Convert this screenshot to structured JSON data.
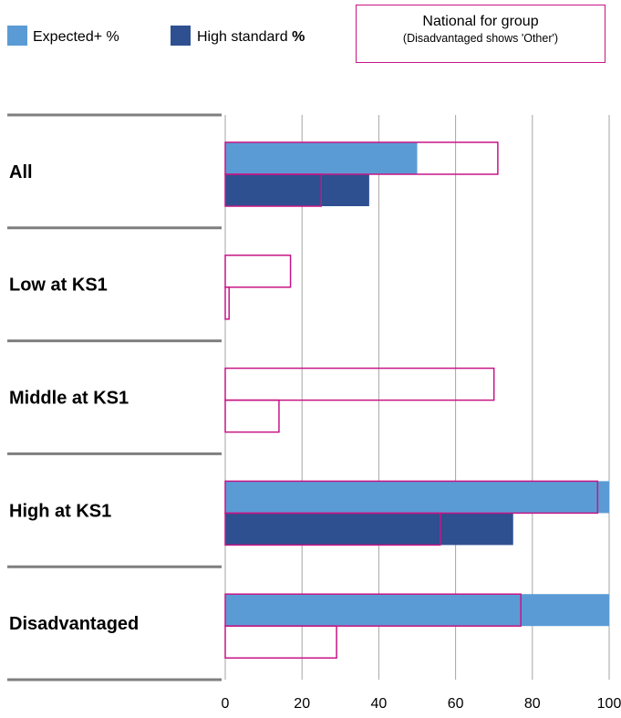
{
  "legend": {
    "expected_label": "Expected+ %",
    "high_label_main": "High standard ",
    "high_label_bold": "%",
    "national_title": "National for group",
    "national_subtitle": "(Disadvantaged shows 'Other')"
  },
  "colors": {
    "expected": "#5b9bd5",
    "high": "#2e5090",
    "national_outline": "#c71585",
    "gridline": "#a6a6a6",
    "separator": "#7f7f7f"
  },
  "chart_data": {
    "type": "bar",
    "orientation": "horizontal",
    "categories": [
      "All",
      "Low at KS1",
      "Middle at KS1",
      "High at KS1",
      "Disadvantaged"
    ],
    "series": [
      {
        "name": "Expected+ %",
        "values": [
          50,
          0,
          0,
          100,
          100
        ]
      },
      {
        "name": "High standard %",
        "values": [
          37.5,
          0,
          0,
          75,
          0
        ]
      }
    ],
    "national": {
      "name": "National for group",
      "expected": [
        71,
        17,
        70,
        97,
        77
      ],
      "high": [
        25,
        1,
        14,
        56,
        29
      ]
    },
    "xlim": [
      0,
      100
    ],
    "xticks": [
      0,
      20,
      40,
      60,
      80,
      100
    ],
    "grid": true,
    "legend_position": "top"
  }
}
